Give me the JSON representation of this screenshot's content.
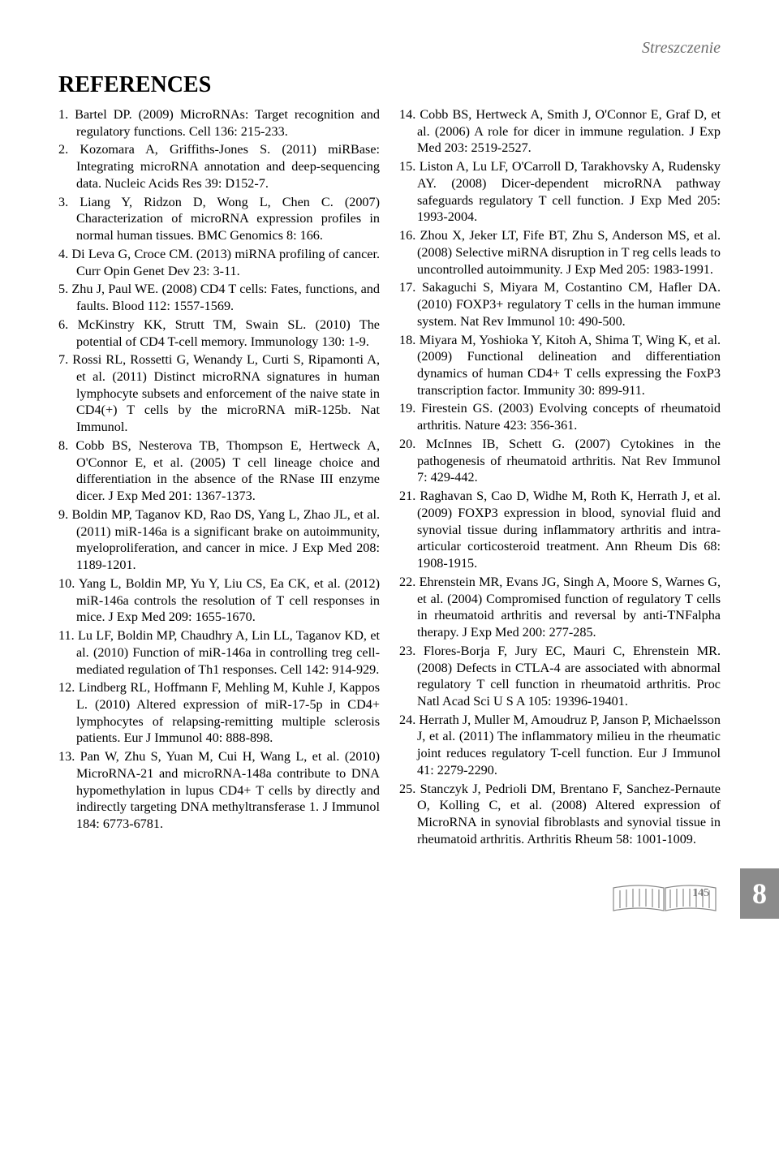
{
  "header_label": "Streszczenie",
  "section_title": "REFERENCES",
  "chapter_number": "8",
  "page_number": "145",
  "references_left": [
    "1. Bartel DP. (2009) MicroRNAs: Target recognition and regulatory functions. Cell 136: 215-233.",
    "2. Kozomara A, Griffiths-Jones S. (2011) miRBase: Integrating microRNA annotation and deep-sequencing data. Nucleic Acids Res 39: D152-7.",
    "3. Liang Y, Ridzon D, Wong L, Chen C. (2007) Characterization of microRNA expression profiles in normal human tissues. BMC Genomics 8: 166.",
    "4. Di Leva G, Croce CM. (2013) miRNA profiling of cancer. Curr Opin Genet Dev 23: 3-11.",
    "5. Zhu J, Paul WE. (2008) CD4 T cells: Fates, functions, and faults. Blood 112: 1557-1569.",
    "6. McKinstry KK, Strutt TM, Swain SL. (2010) The potential of CD4 T-cell memory. Immunology 130: 1-9.",
    "7. Rossi RL, Rossetti G, Wenandy L, Curti S, Ripamonti A, et al. (2011) Distinct microRNA signatures in human lymphocyte subsets and enforcement of the naive state in CD4(+) T cells by the microRNA miR-125b. Nat Immunol.",
    "8. Cobb BS, Nesterova TB, Thompson E, Hertweck A, O'Connor E, et al. (2005) T cell lineage choice and differentiation in the absence of the RNase III enzyme dicer. J Exp Med 201: 1367-1373.",
    "9. Boldin MP, Taganov KD, Rao DS, Yang L, Zhao JL, et al. (2011) miR-146a is a significant brake on autoimmunity, myeloproliferation, and cancer in mice. J Exp Med 208: 1189-1201.",
    "10. Yang L, Boldin MP, Yu Y, Liu CS, Ea CK, et al. (2012) miR-146a controls the resolution of T cell responses in mice. J Exp Med 209: 1655-1670.",
    "11. Lu LF, Boldin MP, Chaudhry A, Lin LL, Taganov KD, et al. (2010) Function of miR-146a in controlling treg cell-mediated regulation of Th1 responses. Cell 142: 914-929.",
    "12. Lindberg RL, Hoffmann F, Mehling M, Kuhle J, Kappos L. (2010) Altered expression of miR-17-5p in CD4+ lymphocytes of relapsing-remitting multiple sclerosis patients. Eur J Immunol 40: 888-898.",
    "13. Pan W, Zhu S, Yuan M, Cui H, Wang L, et al. (2010) MicroRNA-21 and microRNA-148a contribute to DNA hypomethylation in lupus CD4+ T cells by directly and indirectly targeting DNA methyltransferase 1. J Immunol 184: 6773-6781."
  ],
  "references_right": [
    "14. Cobb BS, Hertweck A, Smith J, O'Connor E, Graf D, et al. (2006) A role for dicer in immune regulation. J Exp Med 203: 2519-2527.",
    "15. Liston A, Lu LF, O'Carroll D, Tarakhovsky A, Rudensky AY. (2008) Dicer-dependent microRNA pathway safeguards regulatory T cell function. J Exp Med 205: 1993-2004.",
    "16. Zhou X, Jeker LT, Fife BT, Zhu S, Anderson MS, et al. (2008) Selective miRNA disruption in T reg cells leads to uncontrolled autoimmunity. J Exp Med 205: 1983-1991.",
    "17. Sakaguchi S, Miyara M, Costantino CM, Hafler DA. (2010) FOXP3+ regulatory T cells in the human immune system. Nat Rev Immunol 10: 490-500.",
    "18. Miyara M, Yoshioka Y, Kitoh A, Shima T, Wing K, et al. (2009) Functional delineation and differentiation dynamics of human CD4+ T cells expressing the FoxP3 transcription factor. Immunity 30: 899-911.",
    "19. Firestein GS. (2003) Evolving concepts of rheumatoid arthritis. Nature 423: 356-361.",
    "20. McInnes IB, Schett G. (2007) Cytokines in the pathogenesis of rheumatoid arthritis. Nat Rev Immunol 7: 429-442.",
    "21. Raghavan S, Cao D, Widhe M, Roth K, Herrath J, et al. (2009) FOXP3 expression in blood, synovial fluid and synovial tissue during inflammatory arthritis and intra-articular corticosteroid treatment. Ann Rheum Dis 68: 1908-1915.",
    "22. Ehrenstein MR, Evans JG, Singh A, Moore S, Warnes G, et al. (2004) Compromised function of regulatory T cells in rheumatoid arthritis and reversal by anti-TNFalpha therapy. J Exp Med 200: 277-285.",
    "23. Flores-Borja F, Jury EC, Mauri C, Ehrenstein MR. (2008) Defects in CTLA-4 are associated with abnormal regulatory T cell function in rheumatoid arthritis. Proc Natl Acad Sci U S A 105: 19396-19401.",
    "24. Herrath J, Muller M, Amoudruz P, Janson P, Michaelsson J, et al. (2011) The inflammatory milieu in the rheumatic joint reduces regulatory T-cell function. Eur J Immunol 41: 2279-2290.",
    "25. Stanczyk J, Pedrioli DM, Brentano F, Sanchez-Pernaute O, Kolling C, et al. (2008) Altered expression of MicroRNA in synovial fibroblasts and synovial tissue in rheumatoid arthritis. Arthritis Rheum 58: 1001-1009."
  ],
  "colors": {
    "header_gray": "#6f6f6f",
    "tab_bg": "#8b8b8b",
    "tab_fg": "#ffffff",
    "text": "#000000",
    "icon_stroke": "#888888"
  }
}
